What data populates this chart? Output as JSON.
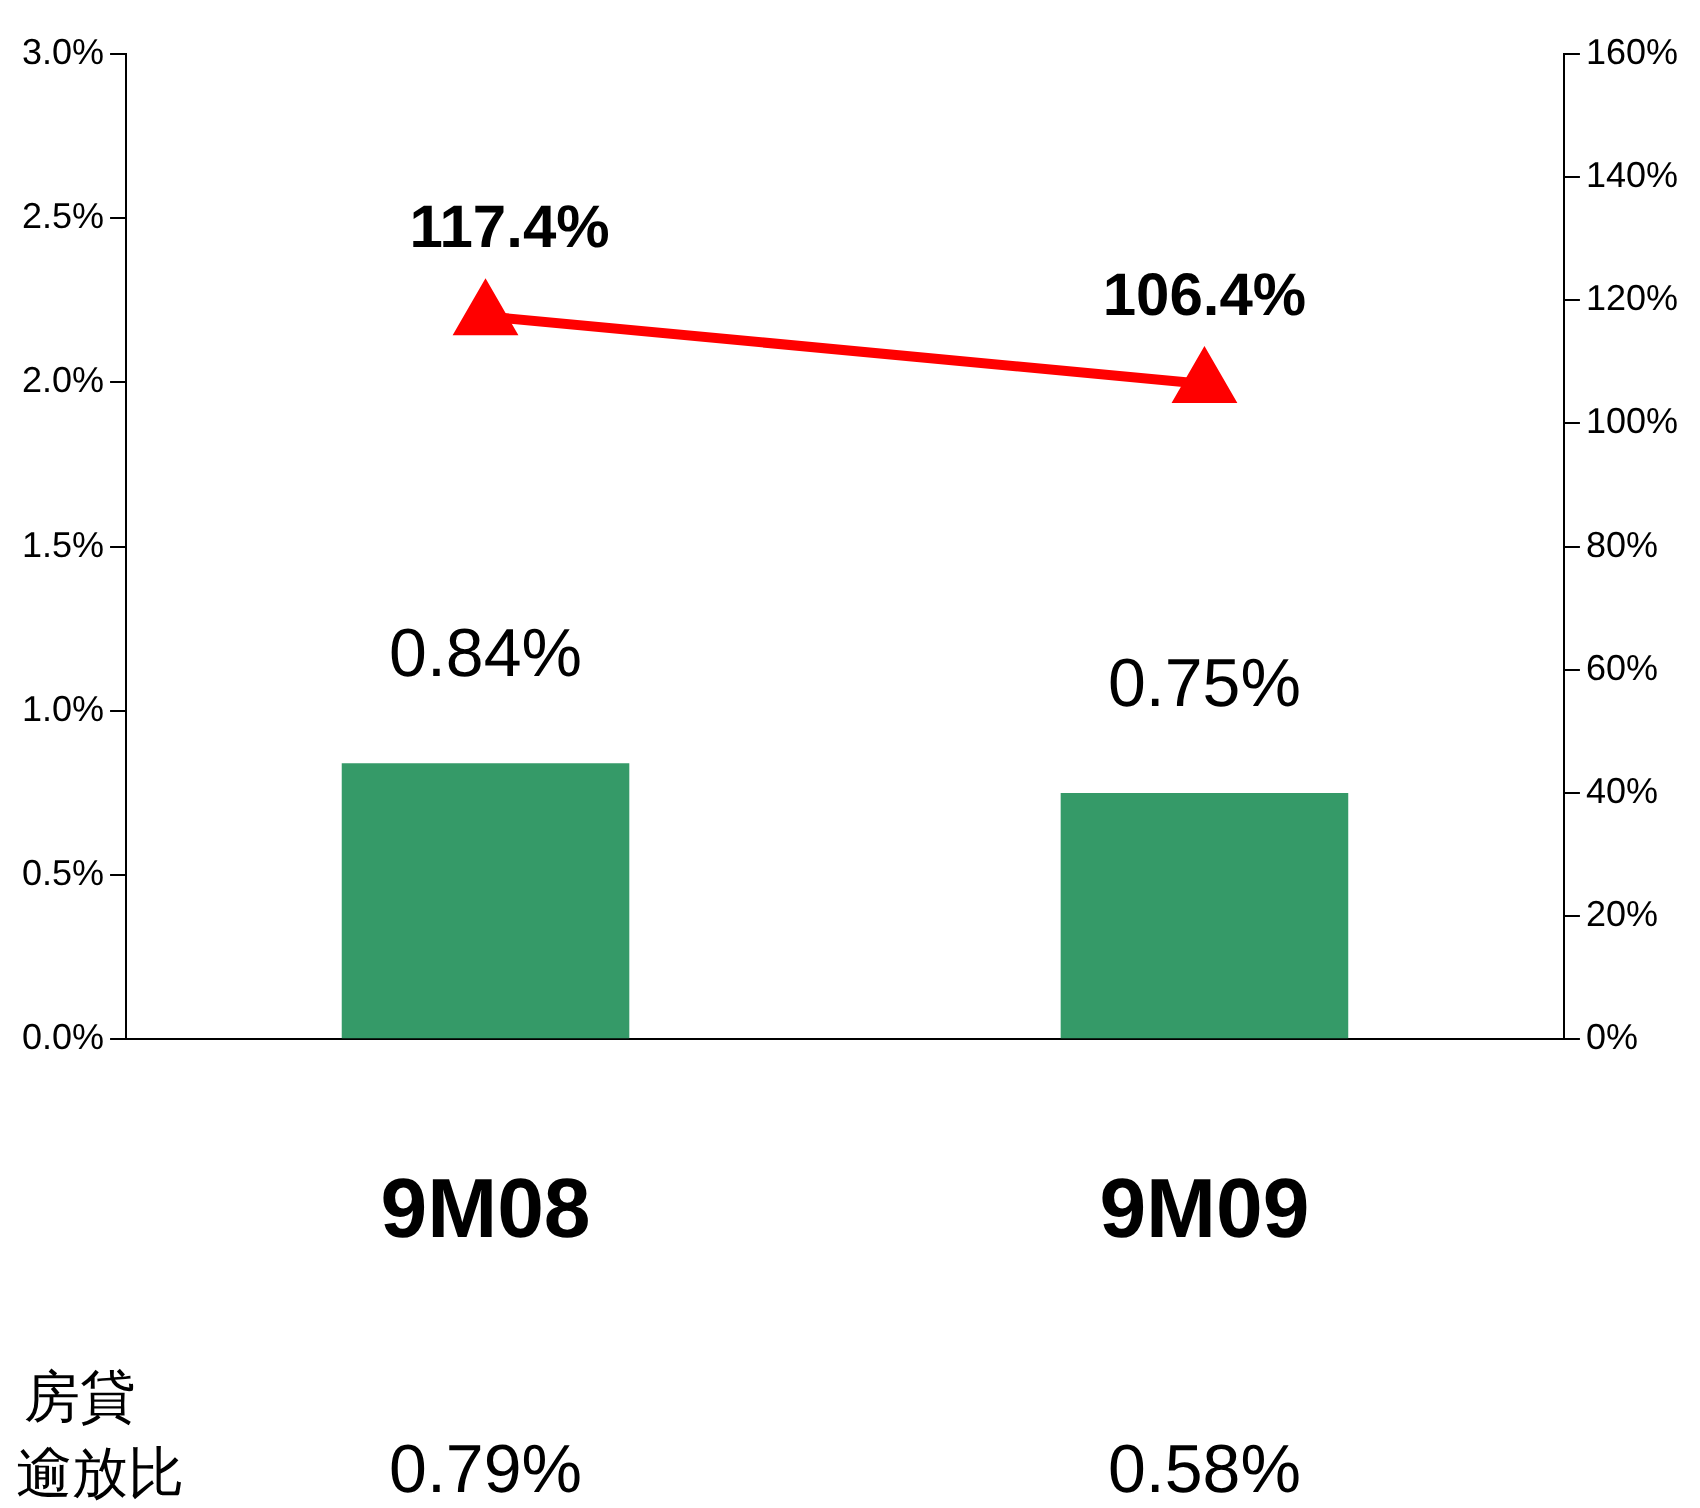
{
  "chart_data": {
    "type": "bar",
    "categories": [
      "9M08",
      "9M09"
    ],
    "series": [
      {
        "color": "#359a68",
        "values": [
          0.84,
          0.75
        ],
        "value_labels": [
          "0.84%",
          "0.75%"
        ]
      },
      {
        "type": "line",
        "axis": "y2",
        "color": "#ff0000",
        "values": [
          117.4,
          106.4
        ],
        "value_labels": [
          "117.4%",
          "106.4%"
        ],
        "marker": "triangle"
      }
    ],
    "ylim": [
      0,
      3
    ],
    "yticks": [
      {
        "value": 0,
        "label": "0.0%"
      },
      {
        "value": 0.5,
        "label": "0.5%"
      },
      {
        "value": 1,
        "label": "1.0%"
      },
      {
        "value": 1.5,
        "label": "1.5%"
      },
      {
        "value": 2,
        "label": "2.0%"
      },
      {
        "value": 2.5,
        "label": "2.5%"
      },
      {
        "value": 3,
        "label": "3.0%"
      }
    ],
    "y2lim": [
      0,
      160
    ],
    "y2ticks": [
      {
        "value": 0,
        "label": "0%"
      },
      {
        "value": 20,
        "label": "20%"
      },
      {
        "value": 40,
        "label": "40%"
      },
      {
        "value": 60,
        "label": "60%"
      },
      {
        "value": 80,
        "label": "80%"
      },
      {
        "value": 100,
        "label": "100%"
      },
      {
        "value": 120,
        "label": "120%"
      },
      {
        "value": 140,
        "label": "140%"
      },
      {
        "value": 160,
        "label": "160%"
      }
    ],
    "grid": false,
    "legend": false,
    "annotations": [
      "房貸逾放比",
      "0.79%",
      "0.58%"
    ]
  }
}
